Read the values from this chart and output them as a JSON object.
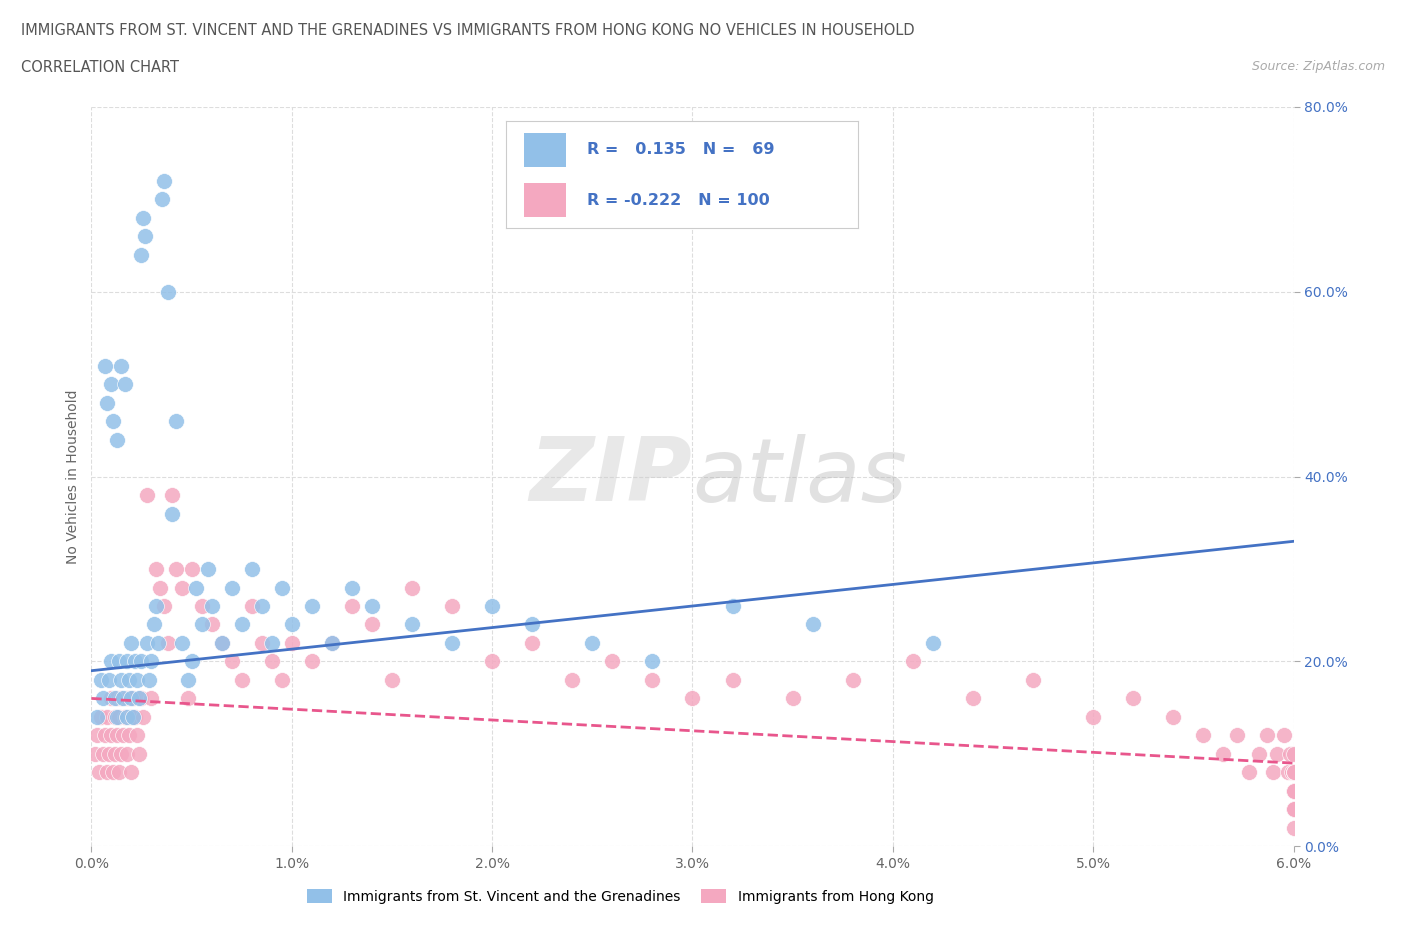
{
  "title_line1": "IMMIGRANTS FROM ST. VINCENT AND THE GRENADINES VS IMMIGRANTS FROM HONG KONG NO VEHICLES IN HOUSEHOLD",
  "title_line2": "CORRELATION CHART",
  "source_text": "Source: ZipAtlas.com",
  "ylabel": "No Vehicles in Household",
  "xmin": 0.0,
  "xmax": 6.0,
  "ymin": 0.0,
  "ymax": 80.0,
  "series1_label": "Immigrants from St. Vincent and the Grenadines",
  "series2_label": "Immigrants from Hong Kong",
  "series1_color": "#92c0e8",
  "series2_color": "#f4a8c0",
  "series1_line_color": "#4472c4",
  "series2_line_color": "#e8568c",
  "series1_R": 0.135,
  "series1_N": 69,
  "series2_R": -0.222,
  "series2_N": 100,
  "legend_text_color": "#4472c4",
  "watermark_text": "ZIPatlas",
  "ytick_color": "#4472c4",
  "xtick_color": "#666666",
  "grid_color": "#dddddd",
  "title_color": "#555555",
  "series1_x": [
    0.03,
    0.05,
    0.06,
    0.07,
    0.08,
    0.09,
    0.1,
    0.1,
    0.11,
    0.12,
    0.13,
    0.13,
    0.14,
    0.15,
    0.15,
    0.16,
    0.17,
    0.18,
    0.18,
    0.19,
    0.2,
    0.2,
    0.21,
    0.22,
    0.23,
    0.24,
    0.25,
    0.25,
    0.26,
    0.27,
    0.28,
    0.29,
    0.3,
    0.31,
    0.32,
    0.33,
    0.35,
    0.36,
    0.38,
    0.4,
    0.42,
    0.45,
    0.48,
    0.5,
    0.52,
    0.55,
    0.58,
    0.6,
    0.65,
    0.7,
    0.75,
    0.8,
    0.85,
    0.9,
    0.95,
    1.0,
    1.1,
    1.2,
    1.3,
    1.4,
    1.6,
    1.8,
    2.0,
    2.2,
    2.5,
    2.8,
    3.2,
    3.6,
    4.2
  ],
  "series1_y": [
    14.0,
    18.0,
    16.0,
    52.0,
    48.0,
    18.0,
    20.0,
    50.0,
    46.0,
    16.0,
    14.0,
    44.0,
    20.0,
    52.0,
    18.0,
    16.0,
    50.0,
    20.0,
    14.0,
    18.0,
    22.0,
    16.0,
    14.0,
    20.0,
    18.0,
    16.0,
    20.0,
    64.0,
    68.0,
    66.0,
    22.0,
    18.0,
    20.0,
    24.0,
    26.0,
    22.0,
    70.0,
    72.0,
    60.0,
    36.0,
    46.0,
    22.0,
    18.0,
    20.0,
    28.0,
    24.0,
    30.0,
    26.0,
    22.0,
    28.0,
    24.0,
    30.0,
    26.0,
    22.0,
    28.0,
    24.0,
    26.0,
    22.0,
    28.0,
    26.0,
    24.0,
    22.0,
    26.0,
    24.0,
    22.0,
    20.0,
    26.0,
    24.0,
    22.0
  ],
  "series2_x": [
    0.02,
    0.03,
    0.04,
    0.05,
    0.06,
    0.07,
    0.08,
    0.08,
    0.09,
    0.1,
    0.1,
    0.11,
    0.12,
    0.12,
    0.13,
    0.13,
    0.14,
    0.14,
    0.15,
    0.15,
    0.16,
    0.17,
    0.18,
    0.18,
    0.19,
    0.2,
    0.2,
    0.21,
    0.22,
    0.23,
    0.24,
    0.25,
    0.26,
    0.28,
    0.3,
    0.32,
    0.34,
    0.36,
    0.38,
    0.4,
    0.42,
    0.45,
    0.48,
    0.5,
    0.55,
    0.6,
    0.65,
    0.7,
    0.75,
    0.8,
    0.85,
    0.9,
    0.95,
    1.0,
    1.1,
    1.2,
    1.3,
    1.4,
    1.5,
    1.6,
    1.8,
    2.0,
    2.2,
    2.4,
    2.6,
    2.8,
    3.0,
    3.2,
    3.5,
    3.8,
    4.1,
    4.4,
    4.7,
    5.0,
    5.2,
    5.4,
    5.55,
    5.65,
    5.72,
    5.78,
    5.83,
    5.87,
    5.9,
    5.92,
    5.95,
    5.97,
    5.98,
    5.99,
    6.0,
    6.0,
    6.0,
    6.0,
    6.0,
    6.0,
    6.0,
    6.0,
    6.0,
    6.0,
    6.0,
    6.0
  ],
  "series2_y": [
    10.0,
    12.0,
    8.0,
    14.0,
    10.0,
    12.0,
    14.0,
    8.0,
    10.0,
    12.0,
    16.0,
    8.0,
    14.0,
    10.0,
    12.0,
    16.0,
    8.0,
    14.0,
    10.0,
    16.0,
    12.0,
    14.0,
    16.0,
    10.0,
    12.0,
    14.0,
    8.0,
    16.0,
    14.0,
    12.0,
    10.0,
    16.0,
    14.0,
    38.0,
    16.0,
    30.0,
    28.0,
    26.0,
    22.0,
    38.0,
    30.0,
    28.0,
    16.0,
    30.0,
    26.0,
    24.0,
    22.0,
    20.0,
    18.0,
    26.0,
    22.0,
    20.0,
    18.0,
    22.0,
    20.0,
    22.0,
    26.0,
    24.0,
    18.0,
    28.0,
    26.0,
    20.0,
    22.0,
    18.0,
    20.0,
    18.0,
    16.0,
    18.0,
    16.0,
    18.0,
    20.0,
    16.0,
    18.0,
    14.0,
    16.0,
    14.0,
    12.0,
    10.0,
    12.0,
    8.0,
    10.0,
    12.0,
    8.0,
    10.0,
    12.0,
    8.0,
    10.0,
    8.0,
    6.0,
    8.0,
    10.0,
    6.0,
    4.0,
    8.0,
    6.0,
    4.0,
    8.0,
    6.0,
    4.0,
    2.0
  ],
  "trend1_x0": 0.0,
  "trend1_y0": 19.0,
  "trend1_x1": 6.0,
  "trend1_y1": 33.0,
  "trend2_x0": 0.0,
  "trend2_y0": 16.0,
  "trend2_x1": 6.0,
  "trend2_y1": 9.0
}
